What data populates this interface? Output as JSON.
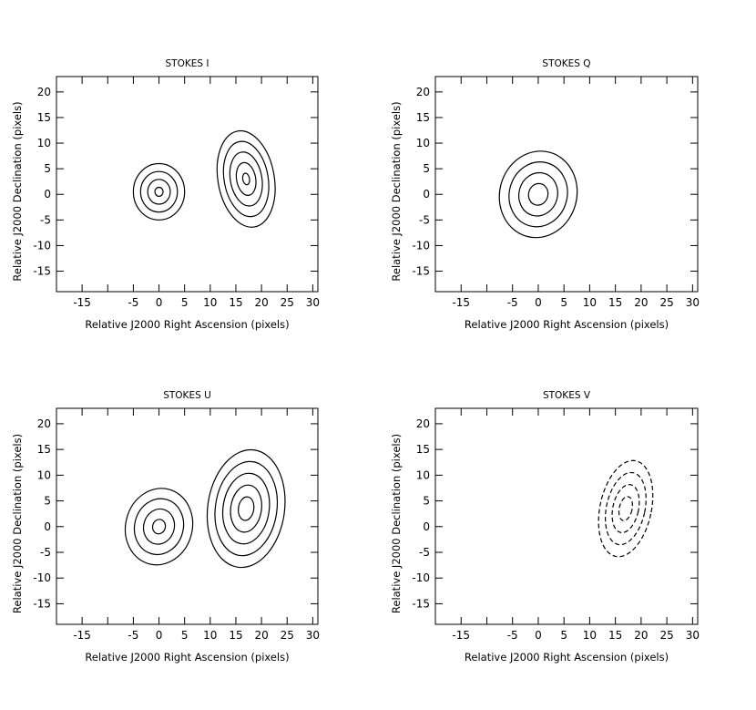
{
  "chart_data": [
    {
      "type": "contour",
      "title": "STOKES I",
      "xlabel": "Relative J2000 Right Ascension (pixels)",
      "ylabel": "Relative J2000 Declination (pixels)",
      "xlim": [
        -20,
        31
      ],
      "ylim": [
        -19,
        23
      ],
      "xticks": [
        -15,
        -5,
        0,
        5,
        10,
        15,
        20,
        25,
        30
      ],
      "yticks": [
        -15,
        -10,
        -5,
        0,
        5,
        10,
        15,
        20
      ],
      "components": [
        {
          "name": "core",
          "center": [
            0,
            0.5
          ],
          "rx": 5,
          "ry": 5.5,
          "tilt_deg": 0,
          "levels": 5,
          "scale_step": 0.28,
          "line": "solid"
        },
        {
          "name": "jet",
          "center": [
            17,
            3
          ],
          "rx": 5.5,
          "ry": 9.5,
          "tilt_deg": -10,
          "levels": 5,
          "scale_step": 0.22,
          "line": "solid"
        }
      ]
    },
    {
      "type": "contour",
      "title": "STOKES Q",
      "xlabel": "Relative J2000 Right Ascension (pixels)",
      "ylabel": "Relative J2000 Declination (pixels)",
      "xlim": [
        -20,
        31
      ],
      "ylim": [
        -19,
        23
      ],
      "xticks": [
        -15,
        -5,
        0,
        5,
        10,
        15,
        20,
        25,
        30
      ],
      "yticks": [
        -15,
        -10,
        -5,
        0,
        5,
        10,
        15,
        20
      ],
      "components": [
        {
          "name": "core",
          "center": [
            0,
            0
          ],
          "rx": 7.5,
          "ry": 8.5,
          "tilt_deg": 15,
          "levels": 4,
          "scale_step": 0.25,
          "line": "solid"
        }
      ]
    },
    {
      "type": "contour",
      "title": "STOKES U",
      "xlabel": "Relative J2000 Right Ascension (pixels)",
      "ylabel": "Relative J2000 Declination (pixels)",
      "xlim": [
        -20,
        31
      ],
      "ylim": [
        -19,
        23
      ],
      "xticks": [
        -15,
        -5,
        0,
        5,
        10,
        15,
        20,
        25,
        30
      ],
      "yticks": [
        -15,
        -10,
        -5,
        0,
        5,
        10,
        15,
        20
      ],
      "components": [
        {
          "name": "core",
          "center": [
            0,
            0
          ],
          "rx": 6.5,
          "ry": 7.5,
          "tilt_deg": 15,
          "levels": 4,
          "scale_step": 0.27,
          "line": "solid"
        },
        {
          "name": "jet",
          "center": [
            17,
            3.5
          ],
          "rx": 7.5,
          "ry": 11.5,
          "tilt_deg": 8,
          "levels": 5,
          "scale_step": 0.2,
          "line": "solid"
        }
      ]
    },
    {
      "type": "contour",
      "title": "STOKES V",
      "xlabel": "Relative J2000 Right Ascension (pixels)",
      "ylabel": "Relative J2000 Declination (pixels)",
      "xlim": [
        -20,
        31
      ],
      "ylim": [
        -19,
        23
      ],
      "xticks": [
        -15,
        -5,
        0,
        5,
        10,
        15,
        20,
        25,
        30
      ],
      "yticks": [
        -15,
        -10,
        -5,
        0,
        5,
        10,
        15,
        20
      ],
      "components": [
        {
          "name": "jet",
          "center": [
            17,
            3.5
          ],
          "rx": 5,
          "ry": 9.5,
          "tilt_deg": 12,
          "levels": 4,
          "scale_step": 0.25,
          "line": "dashed"
        }
      ]
    }
  ]
}
